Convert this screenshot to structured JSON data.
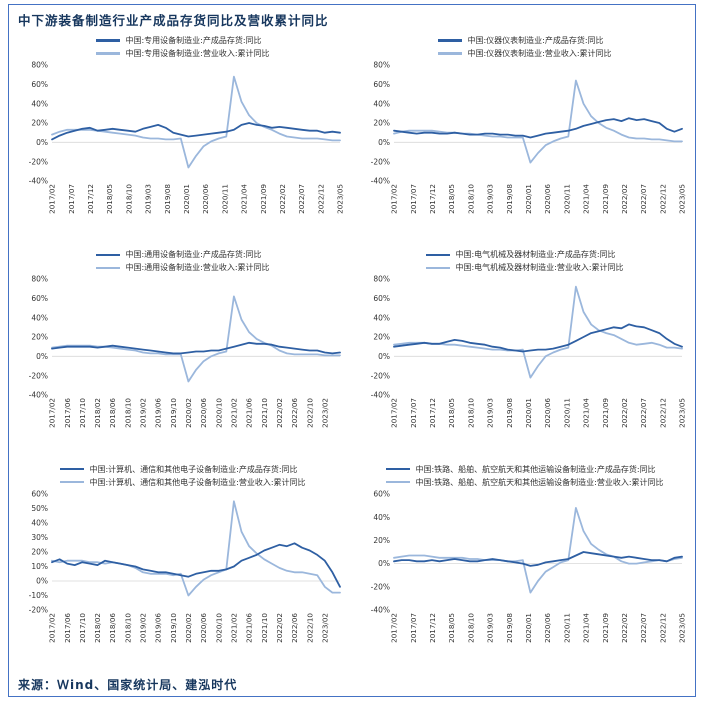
{
  "page": {
    "title": "中下游装备制造行业产成品存货同比及营收累计同比",
    "source": "来源：Ｗind、国家统计局、建泓时代"
  },
  "colors": {
    "dark_line": "#2E5FA3",
    "light_line": "#9BB7DC",
    "title_text": "#17375E",
    "border": "#4472C4",
    "tick_text": "#333333"
  },
  "x_axis_note": {
    "x_start": "2017/02",
    "x_end": "2023/05",
    "x_step_months": 2,
    "points_per_series": 39
  },
  "chart_data": [
    {
      "type": "line",
      "name": "special-equipment",
      "legend_position": "top",
      "grid": false,
      "ylim": [
        -40,
        80
      ],
      "yticks": [
        80,
        60,
        40,
        20,
        0,
        -20,
        -40
      ],
      "ytick_suffix": "%",
      "xticklabels": [
        "2017/02",
        "2017/07",
        "2017/12",
        "2018/05",
        "2018/10",
        "2019/03",
        "2019/08",
        "2020/01",
        "2020/06",
        "2020/11",
        "2021/04",
        "2021/09",
        "2022/02",
        "2022/07",
        "2022/12",
        "2023/05"
      ],
      "series": [
        {
          "name": "中国:专用设备制造业:产成品存货:同比",
          "color_key": "dark",
          "values": [
            3,
            7,
            10,
            12,
            14,
            15,
            12,
            13,
            14,
            13,
            12,
            11,
            14,
            16,
            18,
            15,
            10,
            8,
            6,
            7,
            8,
            9,
            10,
            11,
            13,
            18,
            20,
            18,
            17,
            15,
            16,
            15,
            14,
            13,
            12,
            12,
            10,
            11,
            10
          ]
        },
        {
          "name": "中国:专用设备制造业:营业收入:累计同比",
          "color_key": "light",
          "values": [
            8,
            11,
            13,
            13,
            13,
            13,
            12,
            11,
            10,
            9,
            8,
            7,
            5,
            4,
            4,
            3,
            3,
            4,
            -26,
            -14,
            -4,
            1,
            4,
            6,
            68,
            42,
            28,
            20,
            16,
            13,
            9,
            6,
            5,
            4,
            4,
            4,
            3,
            2,
            2
          ]
        }
      ]
    },
    {
      "type": "line",
      "name": "instruments",
      "legend_position": "top",
      "grid": false,
      "ylim": [
        -40,
        80
      ],
      "yticks": [
        80,
        60,
        40,
        20,
        0,
        -20,
        -40
      ],
      "ytick_suffix": "%",
      "xticklabels": [
        "2017/02",
        "2017/07",
        "2017/12",
        "2018/05",
        "2018/10",
        "2019/03",
        "2019/08",
        "2020/01",
        "2020/06",
        "2020/11",
        "2021/04",
        "2021/09",
        "2022/02",
        "2022/07",
        "2022/12",
        "2023/05"
      ],
      "series": [
        {
          "name": "中国:仪器仪表制造业:产成品存货:同比",
          "color_key": "dark",
          "values": [
            12,
            11,
            10,
            9,
            10,
            10,
            9,
            9,
            10,
            9,
            8,
            8,
            9,
            9,
            8,
            8,
            7,
            7,
            5,
            7,
            9,
            10,
            11,
            12,
            14,
            17,
            19,
            21,
            23,
            24,
            22,
            25,
            23,
            24,
            22,
            20,
            14,
            11,
            14
          ]
        },
        {
          "name": "中国:仪器仪表制造业:营业收入:累计同比",
          "color_key": "light",
          "values": [
            9,
            11,
            12,
            12,
            12,
            12,
            11,
            10,
            10,
            9,
            9,
            8,
            7,
            6,
            6,
            5,
            5,
            5,
            -21,
            -11,
            -3,
            1,
            4,
            6,
            64,
            40,
            27,
            20,
            15,
            12,
            8,
            5,
            4,
            4,
            3,
            3,
            2,
            1,
            1
          ]
        }
      ]
    },
    {
      "type": "line",
      "name": "general-equipment",
      "legend_position": "top",
      "grid": false,
      "ylim": [
        -40,
        80
      ],
      "yticks": [
        80,
        60,
        40,
        20,
        0,
        -20,
        -40
      ],
      "ytick_suffix": "%",
      "xticklabels": [
        "2017/02",
        "2017/06",
        "2017/10",
        "2018/02",
        "2018/06",
        "2018/10",
        "2019/02",
        "2019/06",
        "2019/10",
        "2020/02",
        "2020/06",
        "2020/10",
        "2021/02",
        "2021/06",
        "2021/10",
        "2022/02",
        "2022/06",
        "2022/10",
        "2023/02"
      ],
      "series": [
        {
          "name": "中国:通用设备制造业:产成品存货:同比",
          "color_key": "dark",
          "values": [
            8,
            9,
            10,
            10,
            10,
            10,
            9,
            10,
            11,
            10,
            9,
            8,
            7,
            6,
            5,
            4,
            3,
            3,
            4,
            5,
            5,
            6,
            6,
            8,
            10,
            12,
            14,
            13,
            13,
            12,
            10,
            9,
            8,
            7,
            6,
            6,
            4,
            3,
            4
          ]
        },
        {
          "name": "中国:通用设备制造业:营业收入:累计同比",
          "color_key": "light",
          "values": [
            9,
            10,
            11,
            11,
            11,
            11,
            10,
            10,
            9,
            8,
            7,
            6,
            4,
            3,
            3,
            2,
            2,
            2,
            -26,
            -14,
            -5,
            0,
            3,
            5,
            62,
            38,
            25,
            18,
            14,
            11,
            6,
            3,
            2,
            2,
            2,
            2,
            1,
            1,
            1
          ]
        }
      ]
    },
    {
      "type": "line",
      "name": "electrical-machinery",
      "legend_position": "top",
      "grid": false,
      "ylim": [
        -40,
        80
      ],
      "yticks": [
        80,
        60,
        40,
        20,
        0,
        -20,
        -40
      ],
      "ytick_suffix": "%",
      "xticklabels": [
        "2017/02",
        "2017/07",
        "2017/12",
        "2018/05",
        "2018/10",
        "2019/03",
        "2019/08",
        "2020/01",
        "2020/06",
        "2020/11",
        "2021/04",
        "2021/09",
        "2022/02",
        "2022/07",
        "2022/12",
        "2023/05"
      ],
      "series": [
        {
          "name": "中国:电气机械及器材制造业:产成品存货:同比",
          "color_key": "dark",
          "values": [
            10,
            11,
            12,
            13,
            14,
            13,
            13,
            15,
            17,
            16,
            14,
            13,
            12,
            10,
            9,
            7,
            6,
            5,
            6,
            7,
            7,
            8,
            10,
            12,
            16,
            20,
            24,
            26,
            28,
            30,
            29,
            33,
            31,
            30,
            27,
            24,
            18,
            13,
            10
          ]
        },
        {
          "name": "中国:电气机械及器材制造业:营业收入:累计同比",
          "color_key": "light",
          "values": [
            12,
            13,
            14,
            14,
            14,
            13,
            13,
            12,
            12,
            11,
            10,
            9,
            8,
            7,
            7,
            6,
            6,
            7,
            -22,
            -10,
            0,
            4,
            7,
            9,
            72,
            46,
            33,
            27,
            24,
            22,
            18,
            14,
            12,
            13,
            14,
            12,
            9,
            9,
            8
          ]
        }
      ]
    },
    {
      "type": "line",
      "name": "computer-electronics",
      "legend_position": "top",
      "grid": false,
      "ylim": [
        -20,
        60
      ],
      "yticks": [
        60,
        50,
        40,
        30,
        20,
        10,
        0,
        -10,
        -20
      ],
      "ytick_suffix": "%",
      "xticklabels": [
        "2017/02",
        "2017/06",
        "2017/10",
        "2018/02",
        "2018/06",
        "2018/10",
        "2019/02",
        "2019/06",
        "2019/10",
        "2020/02",
        "2020/06",
        "2020/10",
        "2021/02",
        "2021/06",
        "2021/10",
        "2022/02",
        "2022/06",
        "2022/10",
        "2023/02"
      ],
      "series": [
        {
          "name": "中国:计算机、通信和其他电子设备制造业:产成品存货:同比",
          "color_key": "dark",
          "values": [
            13,
            15,
            12,
            11,
            13,
            12,
            11,
            14,
            13,
            12,
            11,
            10,
            8,
            7,
            6,
            6,
            5,
            4,
            3,
            5,
            6,
            7,
            7,
            8,
            10,
            14,
            16,
            18,
            21,
            23,
            25,
            24,
            26,
            23,
            21,
            18,
            14,
            6,
            -4
          ]
        },
        {
          "name": "中国:计算机、通信和其他电子设备制造业:营业收入:累计同比",
          "color_key": "light",
          "values": [
            14,
            13,
            14,
            14,
            14,
            13,
            13,
            12,
            13,
            12,
            11,
            9,
            6,
            5,
            5,
            5,
            4,
            5,
            -10,
            -4,
            1,
            4,
            6,
            8,
            55,
            34,
            24,
            19,
            15,
            12,
            9,
            7,
            6,
            6,
            5,
            4,
            -4,
            -8,
            -8
          ]
        }
      ]
    },
    {
      "type": "line",
      "name": "transport-equipment",
      "legend_position": "top",
      "grid": false,
      "ylim": [
        -40,
        60
      ],
      "yticks": [
        60,
        40,
        20,
        0,
        -20,
        -40
      ],
      "ytick_suffix": "%",
      "xticklabels": [
        "2017/02",
        "2017/07",
        "2017/12",
        "2018/05",
        "2018/10",
        "2019/03",
        "2019/08",
        "2020/01",
        "2020/06",
        "2020/11",
        "2021/04",
        "2021/09",
        "2022/02",
        "2022/07",
        "2022/12",
        "2023/05"
      ],
      "series": [
        {
          "name": "中国:铁路、船舶、航空航天和其他运输设备制造业:产成品存货:同比",
          "color_key": "dark",
          "values": [
            2,
            3,
            3,
            2,
            2,
            3,
            2,
            3,
            4,
            3,
            2,
            2,
            3,
            4,
            3,
            2,
            1,
            0,
            -2,
            -1,
            1,
            2,
            3,
            4,
            7,
            10,
            9,
            8,
            7,
            6,
            5,
            6,
            5,
            4,
            3,
            3,
            2,
            5,
            6
          ]
        },
        {
          "name": "中国:铁路、船舶、航空航天和其他运输设备制造业:营业收入:累计同比",
          "color_key": "light",
          "values": [
            5,
            6,
            7,
            7,
            7,
            6,
            5,
            5,
            5,
            5,
            4,
            4,
            3,
            3,
            3,
            2,
            2,
            3,
            -25,
            -15,
            -7,
            -3,
            1,
            3,
            48,
            28,
            17,
            12,
            8,
            6,
            2,
            0,
            0,
            1,
            2,
            3,
            2,
            4,
            5
          ]
        }
      ]
    }
  ]
}
